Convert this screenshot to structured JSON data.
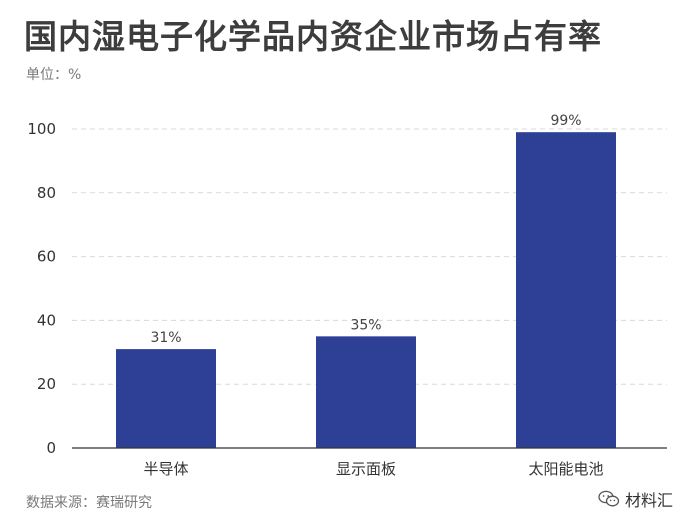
{
  "title": "国内湿电子化学品内资企业市场占有率",
  "unit": "单位：%",
  "source": "数据来源：赛瑞研究",
  "watermark": {
    "text": "材料汇",
    "icon": "wechat-icon"
  },
  "colors": {
    "bar": "#2e3f96",
    "grid": "#d9d9d9",
    "axis": "#333333"
  },
  "chart_data": {
    "type": "bar",
    "categories": [
      "半导体",
      "显示面板",
      "太阳能电池"
    ],
    "values": [
      31,
      35,
      99
    ],
    "value_labels": [
      "31%",
      "35%",
      "99%"
    ],
    "ylim": [
      0,
      100
    ],
    "yticks": [
      0,
      20,
      40,
      60,
      80,
      100
    ],
    "ytick_labels": [
      "0",
      "20",
      "40",
      "60",
      "80",
      "100"
    ],
    "grid": true,
    "legend": "none"
  }
}
